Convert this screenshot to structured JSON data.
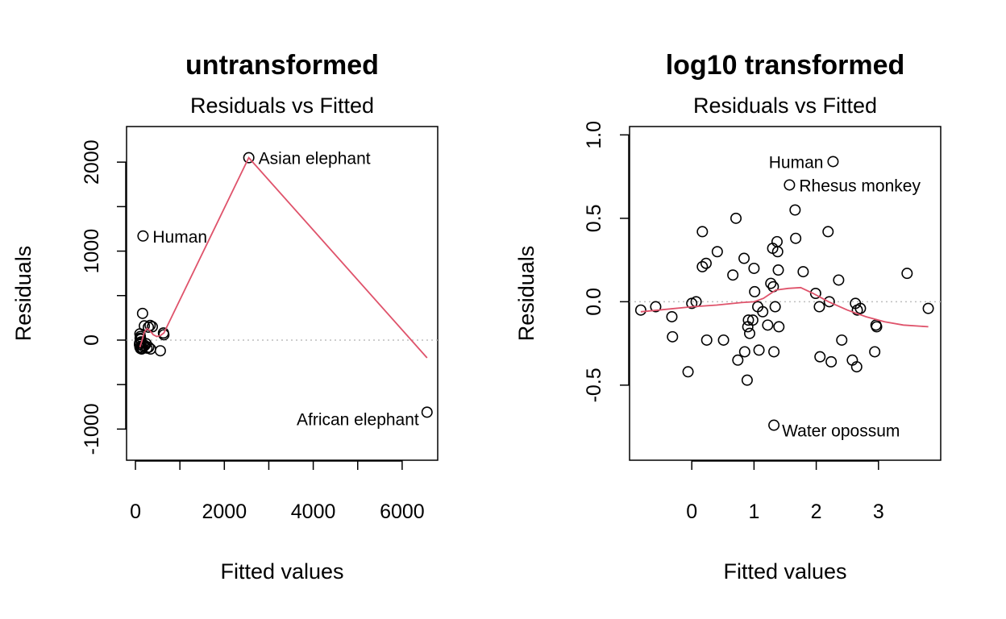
{
  "chart_data": [
    {
      "type": "scatter",
      "title": "untransformed",
      "subtitle": "Residuals vs Fitted",
      "xlabel": "Fitted values",
      "ylabel": "Residuals",
      "xlim": [
        -200,
        6800
      ],
      "ylim": [
        -1350,
        2400
      ],
      "xticks": [
        0,
        1000,
        2000,
        3000,
        4000,
        5000,
        6000
      ],
      "xtick_labels": [
        "0",
        "",
        "2000",
        "",
        "4000",
        "",
        "6000"
      ],
      "yticks": [
        -1000,
        -500,
        0,
        500,
        1000,
        1500,
        2000
      ],
      "ytick_labels": [
        "-1000",
        "",
        "0",
        "",
        "1000",
        "",
        "2000"
      ],
      "reference_line_y": 0,
      "points": [
        {
          "x": 2550,
          "y": 2050,
          "label": "Asian elephant"
        },
        {
          "x": 170,
          "y": 1170,
          "label": "Human"
        },
        {
          "x": 6560,
          "y": -810,
          "label": "African elephant"
        },
        {
          "x": 160,
          "y": 300
        },
        {
          "x": 200,
          "y": 160
        },
        {
          "x": 290,
          "y": 145
        },
        {
          "x": 330,
          "y": 165
        },
        {
          "x": 380,
          "y": 150
        },
        {
          "x": 630,
          "y": 80
        },
        {
          "x": 640,
          "y": 60
        },
        {
          "x": 100,
          "y": 70
        },
        {
          "x": 110,
          "y": 40
        },
        {
          "x": 120,
          "y": 10
        },
        {
          "x": 130,
          "y": -20
        },
        {
          "x": 90,
          "y": -50
        },
        {
          "x": 100,
          "y": -80
        },
        {
          "x": 115,
          "y": -95
        },
        {
          "x": 140,
          "y": -100
        },
        {
          "x": 160,
          "y": -90
        },
        {
          "x": 180,
          "y": -70
        },
        {
          "x": 210,
          "y": -60
        },
        {
          "x": 240,
          "y": -40
        },
        {
          "x": 260,
          "y": -90
        },
        {
          "x": 300,
          "y": -80
        },
        {
          "x": 340,
          "y": -100
        },
        {
          "x": 560,
          "y": -120
        },
        {
          "x": 95,
          "y": -30
        },
        {
          "x": 105,
          "y": 20
        }
      ],
      "smooth": [
        {
          "x": 100,
          "y": -80
        },
        {
          "x": 150,
          "y": 0
        },
        {
          "x": 200,
          "y": 90
        },
        {
          "x": 260,
          "y": 130
        },
        {
          "x": 320,
          "y": 110
        },
        {
          "x": 400,
          "y": 60
        },
        {
          "x": 480,
          "y": 40
        },
        {
          "x": 560,
          "y": 50
        },
        {
          "x": 640,
          "y": 80
        },
        {
          "x": 2550,
          "y": 2050
        },
        {
          "x": 6560,
          "y": -200
        }
      ]
    },
    {
      "type": "scatter",
      "title": "log10 transformed",
      "subtitle": "Residuals vs Fitted",
      "xlabel": "Fitted values",
      "ylabel": "Residuals",
      "xlim": [
        -1,
        4
      ],
      "ylim": [
        -0.95,
        1.05
      ],
      "xticks": [
        0,
        1,
        2,
        3
      ],
      "xtick_labels": [
        "0",
        "1",
        "2",
        "3"
      ],
      "yticks": [
        -0.5,
        0.0,
        0.5,
        1.0
      ],
      "ytick_labels": [
        "-0.5",
        "0.0",
        "0.5",
        "1.0"
      ],
      "reference_line_y": 0,
      "points": [
        {
          "x": 2.27,
          "y": 0.84,
          "label": "Human"
        },
        {
          "x": 1.57,
          "y": 0.7,
          "label": "Rhesus monkey"
        },
        {
          "x": 1.32,
          "y": -0.74,
          "label": "Water opossum"
        },
        {
          "x": -0.82,
          "y": -0.05
        },
        {
          "x": -0.58,
          "y": -0.03
        },
        {
          "x": -0.32,
          "y": -0.09
        },
        {
          "x": -0.31,
          "y": -0.21
        },
        {
          "x": -0.06,
          "y": -0.42
        },
        {
          "x": 0.0,
          "y": -0.01
        },
        {
          "x": 0.07,
          "y": 0.0
        },
        {
          "x": 0.17,
          "y": 0.42
        },
        {
          "x": 0.17,
          "y": 0.21
        },
        {
          "x": 0.23,
          "y": 0.23
        },
        {
          "x": 0.24,
          "y": -0.23
        },
        {
          "x": 0.41,
          "y": 0.3
        },
        {
          "x": 0.51,
          "y": -0.23
        },
        {
          "x": 0.66,
          "y": 0.16
        },
        {
          "x": 0.71,
          "y": 0.5
        },
        {
          "x": 0.74,
          "y": -0.35
        },
        {
          "x": 0.84,
          "y": 0.26
        },
        {
          "x": 0.85,
          "y": -0.3
        },
        {
          "x": 0.89,
          "y": -0.47
        },
        {
          "x": 0.9,
          "y": -0.15
        },
        {
          "x": 0.91,
          "y": -0.11
        },
        {
          "x": 0.93,
          "y": -0.19
        },
        {
          "x": 0.98,
          "y": -0.11
        },
        {
          "x": 1.0,
          "y": 0.2
        },
        {
          "x": 1.01,
          "y": 0.06
        },
        {
          "x": 1.06,
          "y": -0.03
        },
        {
          "x": 1.08,
          "y": -0.29
        },
        {
          "x": 1.14,
          "y": -0.06
        },
        {
          "x": 1.22,
          "y": -0.14
        },
        {
          "x": 1.27,
          "y": 0.11
        },
        {
          "x": 1.3,
          "y": 0.32
        },
        {
          "x": 1.31,
          "y": 0.09
        },
        {
          "x": 1.32,
          "y": -0.3
        },
        {
          "x": 1.34,
          "y": -0.03
        },
        {
          "x": 1.37,
          "y": 0.36
        },
        {
          "x": 1.38,
          "y": 0.3
        },
        {
          "x": 1.39,
          "y": 0.19
        },
        {
          "x": 1.4,
          "y": -0.15
        },
        {
          "x": 1.66,
          "y": 0.55
        },
        {
          "x": 1.67,
          "y": 0.38
        },
        {
          "x": 1.79,
          "y": 0.18
        },
        {
          "x": 1.99,
          "y": 0.05
        },
        {
          "x": 2.05,
          "y": -0.03
        },
        {
          "x": 2.06,
          "y": -0.33
        },
        {
          "x": 2.19,
          "y": 0.42
        },
        {
          "x": 2.21,
          "y": 0.0
        },
        {
          "x": 2.24,
          "y": -0.36
        },
        {
          "x": 2.36,
          "y": 0.13
        },
        {
          "x": 2.41,
          "y": -0.23
        },
        {
          "x": 2.58,
          "y": -0.35
        },
        {
          "x": 2.63,
          "y": -0.01
        },
        {
          "x": 2.65,
          "y": -0.39
        },
        {
          "x": 2.66,
          "y": -0.05
        },
        {
          "x": 2.71,
          "y": -0.04
        },
        {
          "x": 2.94,
          "y": -0.3
        },
        {
          "x": 2.96,
          "y": -0.14
        },
        {
          "x": 2.97,
          "y": -0.15
        },
        {
          "x": 3.46,
          "y": 0.17
        },
        {
          "x": 3.8,
          "y": -0.04
        }
      ],
      "smooth": [
        {
          "x": -0.82,
          "y": -0.06
        },
        {
          "x": -0.4,
          "y": -0.045
        },
        {
          "x": 0.0,
          "y": -0.03
        },
        {
          "x": 0.4,
          "y": -0.02
        },
        {
          "x": 0.8,
          "y": -0.005
        },
        {
          "x": 1.0,
          "y": 0.0
        },
        {
          "x": 1.15,
          "y": 0.02
        },
        {
          "x": 1.35,
          "y": 0.07
        },
        {
          "x": 1.55,
          "y": 0.08
        },
        {
          "x": 1.75,
          "y": 0.085
        },
        {
          "x": 1.95,
          "y": 0.05
        },
        {
          "x": 2.2,
          "y": 0.0
        },
        {
          "x": 2.5,
          "y": -0.05
        },
        {
          "x": 2.8,
          "y": -0.09
        },
        {
          "x": 3.1,
          "y": -0.12
        },
        {
          "x": 3.4,
          "y": -0.14
        },
        {
          "x": 3.8,
          "y": -0.15
        }
      ]
    }
  ],
  "colors": {
    "smooth_line": "#DF536B",
    "reference_line": "#BEBEBE",
    "points": "#000000"
  }
}
